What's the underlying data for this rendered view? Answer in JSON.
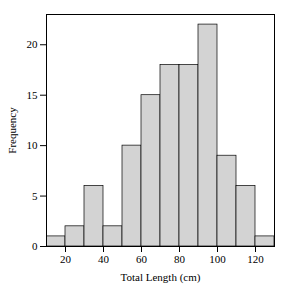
{
  "chart_data": {
    "type": "histogram",
    "xlabel": "Total Length (cm)",
    "ylabel": "Frequency",
    "bins": [
      10,
      20,
      30,
      40,
      50,
      60,
      70,
      80,
      90,
      100,
      110,
      120,
      130
    ],
    "values": [
      1,
      2,
      6,
      2,
      10,
      15,
      18,
      18,
      22,
      9,
      6,
      1
    ],
    "color": "#d3d3d3",
    "xlim": [
      10,
      130
    ],
    "ylim": [
      0,
      23
    ],
    "xticks": [
      20,
      40,
      60,
      80,
      100,
      120
    ],
    "yticks": [
      0,
      5,
      10,
      15,
      20
    ],
    "grid": false
  }
}
